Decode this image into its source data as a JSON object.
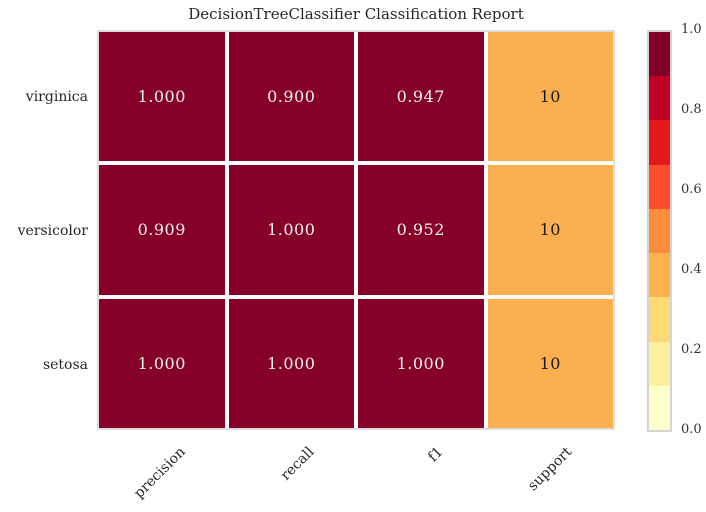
{
  "title": "DecisionTreeClassifier Classification Report",
  "chart_data": {
    "type": "heatmap",
    "title": "DecisionTreeClassifier Classification Report",
    "rows": [
      "virginica",
      "versicolor",
      "setosa"
    ],
    "columns": [
      "precision",
      "recall",
      "f1",
      "support"
    ],
    "values": [
      [
        1.0,
        0.9,
        0.947,
        10
      ],
      [
        0.909,
        1.0,
        0.952,
        10
      ],
      [
        1.0,
        1.0,
        1.0,
        10
      ]
    ],
    "cell_labels": [
      [
        "1.000",
        "0.900",
        "0.947",
        "10"
      ],
      [
        "0.909",
        "1.000",
        "0.952",
        "10"
      ],
      [
        "1.000",
        "1.000",
        "1.000",
        "10"
      ]
    ],
    "cell_colors": [
      [
        "#850127",
        "#850127",
        "#850127",
        "#fbaf51"
      ],
      [
        "#850127",
        "#850127",
        "#850127",
        "#fbaf51"
      ],
      [
        "#850127",
        "#850127",
        "#850127",
        "#fbaf51"
      ]
    ],
    "cell_text_colors": [
      [
        "#f2f2f2",
        "#f2f2f2",
        "#f2f2f2",
        "#1a1a1a"
      ],
      [
        "#f2f2f2",
        "#f2f2f2",
        "#f2f2f2",
        "#1a1a1a"
      ],
      [
        "#f2f2f2",
        "#f2f2f2",
        "#f2f2f2",
        "#1a1a1a"
      ]
    ],
    "colormap": "YlOrRd",
    "grid": false,
    "colorbar": {
      "position": "right",
      "min": 0.0,
      "max": 1.0,
      "ticks": [
        "1.0",
        "0.8",
        "0.6",
        "0.4",
        "0.2",
        "0.0"
      ],
      "segment_colors": [
        "#800026",
        "#bd0026",
        "#e31a1c",
        "#fc4e2a",
        "#fd8d3c",
        "#feb24c",
        "#fed976",
        "#ffeda0",
        "#ffffcc"
      ]
    }
  }
}
